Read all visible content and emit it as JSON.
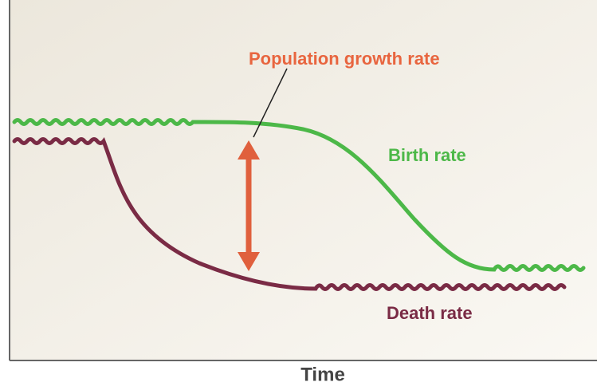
{
  "diagram": {
    "annotation": "Population growth rate",
    "birth_label": "Birth rate",
    "death_label": "Death rate",
    "x_axis_label": "Time"
  }
}
